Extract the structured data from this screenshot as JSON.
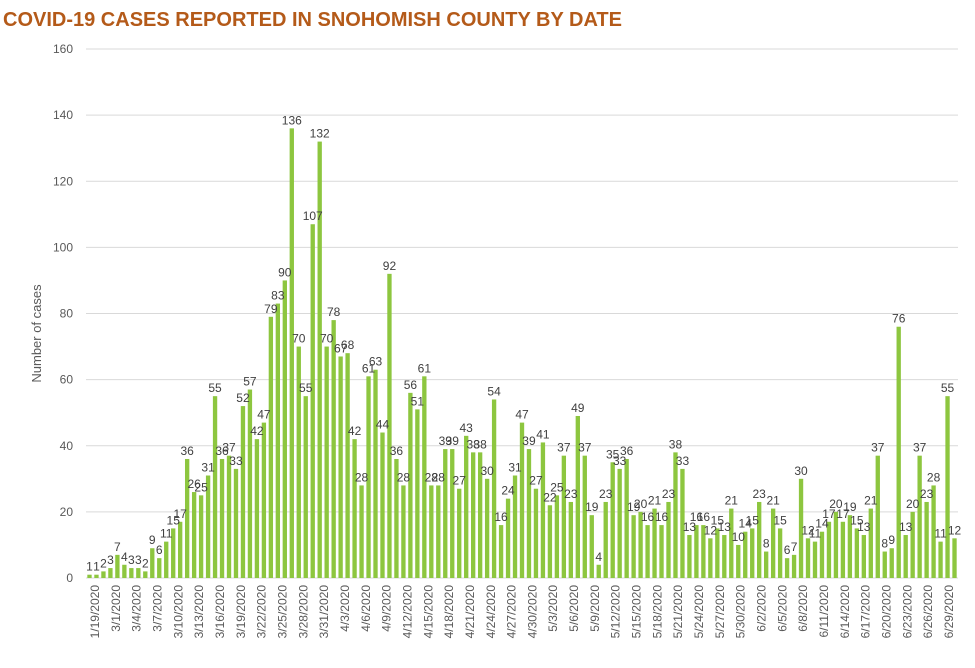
{
  "page": {
    "title": "COVID-19 CASES REPORTED IN SNOHOMISH COUNTY BY DATE"
  },
  "colors": {
    "title": "#b45a19",
    "bar": "#8dc63f",
    "grid": "#d9d9d9",
    "text": "#595959"
  },
  "chart_data": {
    "type": "bar",
    "title": "COVID-19 CASES REPORTED IN SNOHOMISH COUNTY BY DATE",
    "xlabel": "",
    "ylabel": "Number of cases",
    "ylim": [
      0,
      160
    ],
    "yticks": [
      0,
      20,
      40,
      60,
      80,
      100,
      120,
      140,
      160
    ],
    "grid": true,
    "legend": "none",
    "x_tick_labels": [
      "1/19/2020",
      "3/1/2020",
      "3/4/2020",
      "3/7/2020",
      "3/10/2020",
      "3/13/2020",
      "3/16/2020",
      "3/19/2020",
      "3/22/2020",
      "3/25/2020",
      "3/28/2020",
      "3/31/2020",
      "4/3/2020",
      "4/6/2020",
      "4/9/2020",
      "4/12/2020",
      "4/15/2020",
      "4/18/2020",
      "4/21/2020",
      "4/24/2020",
      "4/27/2020",
      "4/30/2020",
      "5/3/2020",
      "5/6/2020",
      "5/9/2020",
      "5/12/2020",
      "5/15/2020",
      "5/18/2020",
      "5/21/2020",
      "5/24/2020",
      "5/27/2020",
      "5/30/2020",
      "6/2/2020",
      "6/5/2020",
      "6/8/2020",
      "6/11/2020",
      "6/14/2020",
      "6/17/2020",
      "6/20/2020",
      "6/23/2020",
      "6/26/2020",
      "6/29/2020"
    ],
    "values": [
      1,
      1,
      2,
      3,
      7,
      4,
      3,
      3,
      2,
      9,
      6,
      11,
      15,
      17,
      36,
      26,
      25,
      31,
      55,
      36,
      37,
      33,
      52,
      57,
      42,
      47,
      79,
      83,
      90,
      136,
      70,
      55,
      107,
      132,
      70,
      78,
      67,
      68,
      42,
      28,
      61,
      63,
      44,
      92,
      36,
      28,
      56,
      51,
      61,
      28,
      28,
      39,
      39,
      27,
      43,
      38,
      38,
      30,
      54,
      16,
      24,
      31,
      47,
      39,
      27,
      41,
      22,
      25,
      37,
      23,
      49,
      37,
      19,
      4,
      23,
      35,
      33,
      36,
      19,
      20,
      16,
      21,
      16,
      23,
      38,
      33,
      13,
      16,
      16,
      12,
      15,
      13,
      21,
      10,
      14,
      15,
      23,
      8,
      21,
      15,
      6,
      7,
      30,
      12,
      11,
      14,
      17,
      20,
      17,
      19,
      15,
      13,
      21,
      37,
      8,
      9,
      76,
      13,
      20,
      37,
      23,
      28,
      11,
      55,
      12
    ]
  }
}
